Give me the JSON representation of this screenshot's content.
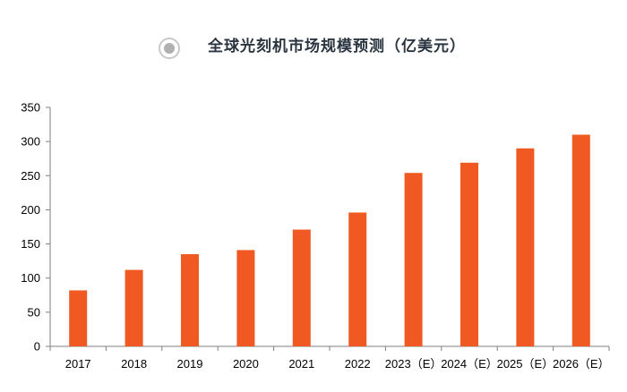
{
  "chart_data": {
    "type": "bar",
    "title": "全球光刻机市场规模预测（亿美元）",
    "xlabel": "",
    "ylabel": "",
    "categories": [
      "2017",
      "2018",
      "2019",
      "2020",
      "2021",
      "2022",
      "2023（E）",
      "2024（E）",
      "2025（E）",
      "2026（E）"
    ],
    "values": [
      82,
      112,
      135,
      141,
      171,
      196,
      254,
      269,
      290,
      310
    ],
    "ylim": [
      0,
      350
    ],
    "yticks": [
      "0",
      "50",
      "100",
      "150",
      "200",
      "250",
      "300",
      "350"
    ],
    "grid": false,
    "legend": "none",
    "bar_color": "#F05A22",
    "axis_color": "#7f7f7f",
    "bullet_outer_color": "#C8C8C8",
    "bullet_inner_color": "#B0B0B0"
  }
}
